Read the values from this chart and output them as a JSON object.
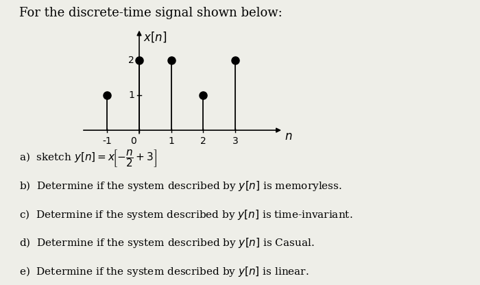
{
  "title": "For the discrete-time signal shown below:",
  "ylabel": "$x[n]$",
  "xlabel": "$n$",
  "n_values": [
    -1,
    0,
    1,
    2,
    3
  ],
  "x_values": [
    1,
    2,
    2,
    1,
    2
  ],
  "xlim": [
    -1.8,
    4.5
  ],
  "ylim": [
    -0.35,
    2.9
  ],
  "yticks": [
    1,
    2
  ],
  "xticks": [
    -1,
    0,
    1,
    2,
    3
  ],
  "stem_color": "black",
  "marker_color": "black",
  "marker_size": 8,
  "bg_color": "#eeeee8",
  "line_width": 1.3,
  "text_a": "a)  sketch $y[n] = x\\!\\left[-\\dfrac{n}{2}+3\\right]$",
  "text_b": "b)  Determine if the system described by $y[n]$ is memoryless.",
  "text_c": "c)  Determine if the system described by $y[n]$ is time-invariant.",
  "text_d": "d)  Determine if the system described by $y[n]$ is Casual.",
  "text_e": "e)  Determine if the system described by $y[n]$ is linear.",
  "fontsize_text": 11,
  "fontsize_title": 13
}
